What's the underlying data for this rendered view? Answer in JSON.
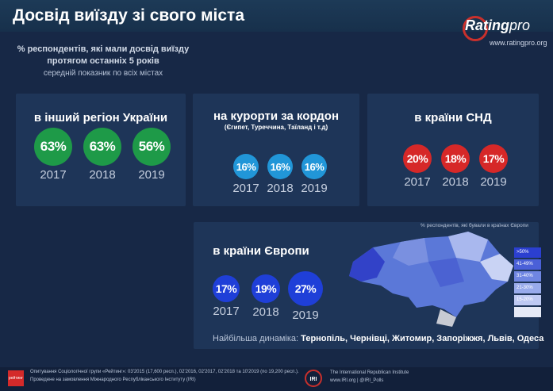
{
  "header": {
    "title": "Досвід виїзду зі свого міста",
    "brand": "Rating",
    "brand_suffix": "pro",
    "url": "www.ratingpro.org"
  },
  "subtitle": {
    "line1": "% респондентів, які мали досвід виїзду",
    "line2": "протягом останніх 5 років",
    "note": "середній показник по всіх містах"
  },
  "panels": [
    {
      "title": "в інший регіон України",
      "items": [
        {
          "value": "63%",
          "year": "2017"
        },
        {
          "value": "63%",
          "year": "2018"
        },
        {
          "value": "56%",
          "year": "2019"
        }
      ]
    },
    {
      "title": "на курорти за кордон",
      "note": "(Єгипет, Туреччина, Таїланд і т.д)",
      "items": [
        {
          "value": "16%",
          "year": "2017"
        },
        {
          "value": "16%",
          "year": "2018"
        },
        {
          "value": "16%",
          "year": "2019"
        }
      ]
    },
    {
      "title": "в країни СНД",
      "items": [
        {
          "value": "20%",
          "year": "2017"
        },
        {
          "value": "18%",
          "year": "2018"
        },
        {
          "value": "17%",
          "year": "2019"
        }
      ]
    },
    {
      "title": "в країни Європи",
      "items": [
        {
          "value": "17%",
          "year": "2017"
        },
        {
          "value": "19%",
          "year": "2018"
        },
        {
          "value": "27%",
          "year": "2019"
        }
      ]
    }
  ],
  "map": {
    "caption": "% респондентів, які бували в країнах Європи",
    "legend": [
      ">50%",
      "41-49%",
      "31-40%",
      "21-30%",
      "15-20%"
    ]
  },
  "dynamics": {
    "label": "Найбільша динаміка:",
    "cities": "Тернопіль, Чернівці, Житомир, Запоріжжя, Львів, Одеса"
  },
  "footer": {
    "logo": "рейтинг",
    "line1": "Опитування Соціологічної групи «Рейтинг»: 03'2015 (17,600 респ.), 02'2016, 02'2017, 02'2018 та 10'2019 (по 19,200 респ.).",
    "line2": "Проведене на замовлення Міжнародного Республіканського Інституту (IRI)",
    "iri_logo": "IRI",
    "iri_name": "The International Republican Institute",
    "iri_links": "www.IRI.org | @IRI_Polls"
  }
}
